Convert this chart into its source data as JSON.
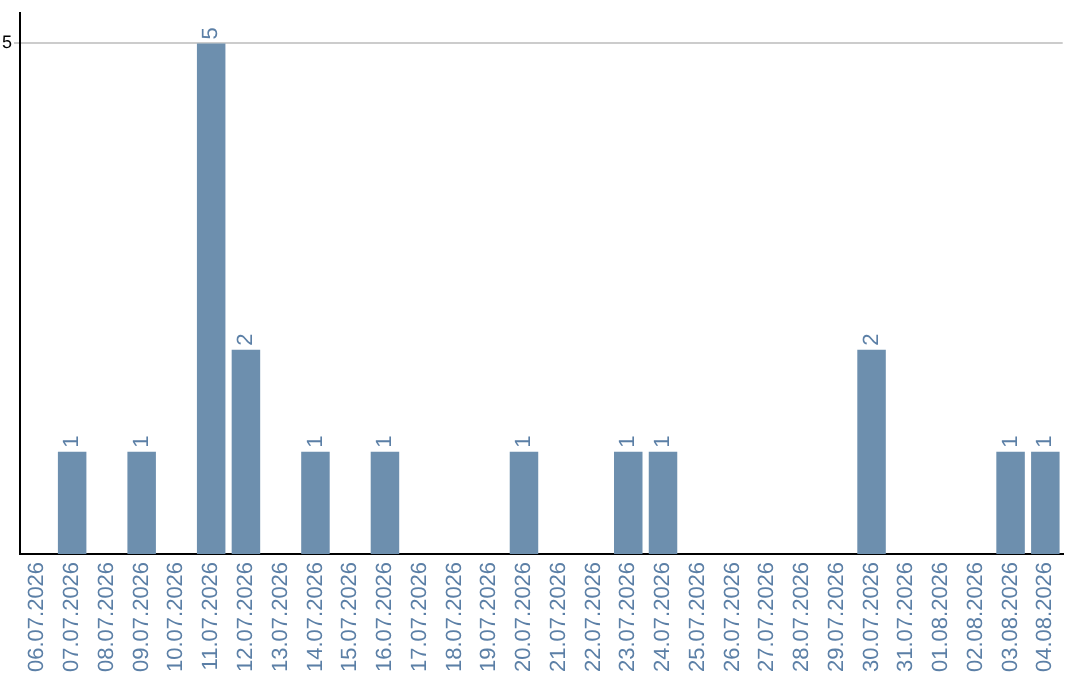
{
  "chart_data": {
    "type": "bar",
    "categories": [
      "06.07.2026",
      "07.07.2026",
      "08.07.2026",
      "09.07.2026",
      "10.07.2026",
      "11.07.2026",
      "12.07.2026",
      "13.07.2026",
      "14.07.2026",
      "15.07.2026",
      "16.07.2026",
      "17.07.2026",
      "18.07.2026",
      "19.07.2026",
      "20.07.2026",
      "21.07.2026",
      "22.07.2026",
      "23.07.2026",
      "24.07.2026",
      "25.07.2026",
      "26.07.2026",
      "27.07.2026",
      "28.07.2026",
      "29.07.2026",
      "30.07.2026",
      "31.07.2026",
      "01.08.2026",
      "02.08.2026",
      "03.08.2026",
      "04.08.2026"
    ],
    "values": [
      0,
      1,
      0,
      1,
      0,
      5,
      2,
      0,
      1,
      0,
      1,
      0,
      0,
      0,
      1,
      0,
      0,
      1,
      1,
      0,
      0,
      0,
      0,
      0,
      2,
      0,
      0,
      0,
      1,
      1
    ],
    "value_labels": [
      null,
      "1",
      null,
      "1",
      null,
      "5",
      "2",
      null,
      "1",
      null,
      "1",
      null,
      null,
      null,
      "1",
      null,
      null,
      "1",
      "1",
      null,
      null,
      null,
      null,
      null,
      "2",
      null,
      null,
      null,
      "1",
      "1"
    ],
    "color": "#6d8fae",
    "ylim": [
      0,
      5.3
    ],
    "yticks": [
      5
    ],
    "grid": "y",
    "legend": false
  }
}
